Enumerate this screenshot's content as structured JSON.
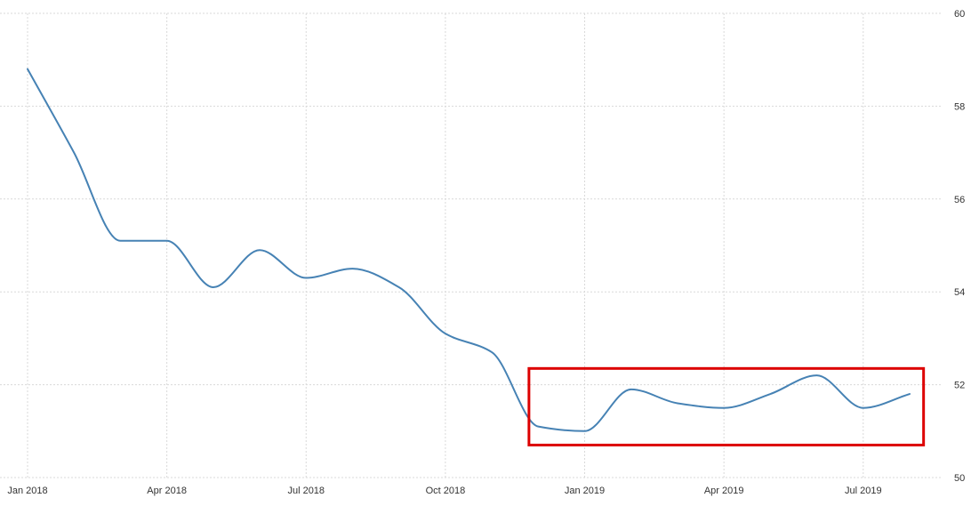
{
  "chart_data": {
    "type": "line",
    "title": "",
    "xlabel": "",
    "ylabel": "",
    "ylim": [
      50,
      60
    ],
    "y_ticks": [
      50,
      52,
      54,
      56,
      58,
      60
    ],
    "x_ticks": [
      {
        "date": "2018-01",
        "label": "Jan 2018"
      },
      {
        "date": "2018-04",
        "label": "Apr 2018"
      },
      {
        "date": "2018-07",
        "label": "Jul 2018"
      },
      {
        "date": "2018-10",
        "label": "Oct 2018"
      },
      {
        "date": "2019-01",
        "label": "Jan 2019"
      },
      {
        "date": "2019-04",
        "label": "Apr 2019"
      },
      {
        "date": "2019-07",
        "label": "Jul 2019"
      }
    ],
    "xlim": [
      "2018-01",
      "2019-08"
    ],
    "grid": true,
    "y_axis_position": "right",
    "series": [
      {
        "color": "#4682b4",
        "points": [
          {
            "x": "2018-01",
            "y": 58.8
          },
          {
            "x": "2018-02",
            "y": 57.0
          },
          {
            "x": "2018-03",
            "y": 55.1
          },
          {
            "x": "2018-04",
            "y": 55.1
          },
          {
            "x": "2018-05",
            "y": 54.1
          },
          {
            "x": "2018-06",
            "y": 54.9
          },
          {
            "x": "2018-07",
            "y": 54.3
          },
          {
            "x": "2018-08",
            "y": 54.5
          },
          {
            "x": "2018-09",
            "y": 54.1
          },
          {
            "x": "2018-10",
            "y": 53.1
          },
          {
            "x": "2018-11",
            "y": 52.7
          },
          {
            "x": "2018-12",
            "y": 51.1
          },
          {
            "x": "2019-01",
            "y": 51.0
          },
          {
            "x": "2019-02",
            "y": 51.9
          },
          {
            "x": "2019-03",
            "y": 51.6
          },
          {
            "x": "2019-04",
            "y": 51.5
          },
          {
            "x": "2019-05",
            "y": 51.8
          },
          {
            "x": "2019-06",
            "y": 52.2
          },
          {
            "x": "2019-07",
            "y": 51.5
          },
          {
            "x": "2019-08",
            "y": 51.8
          }
        ]
      }
    ],
    "annotations": [
      {
        "type": "rectangle",
        "color": "#dd0000",
        "x_start": "2018-11-25",
        "x_end": "2019-08-10",
        "y_min": 50.7,
        "y_max": 52.35
      }
    ]
  }
}
